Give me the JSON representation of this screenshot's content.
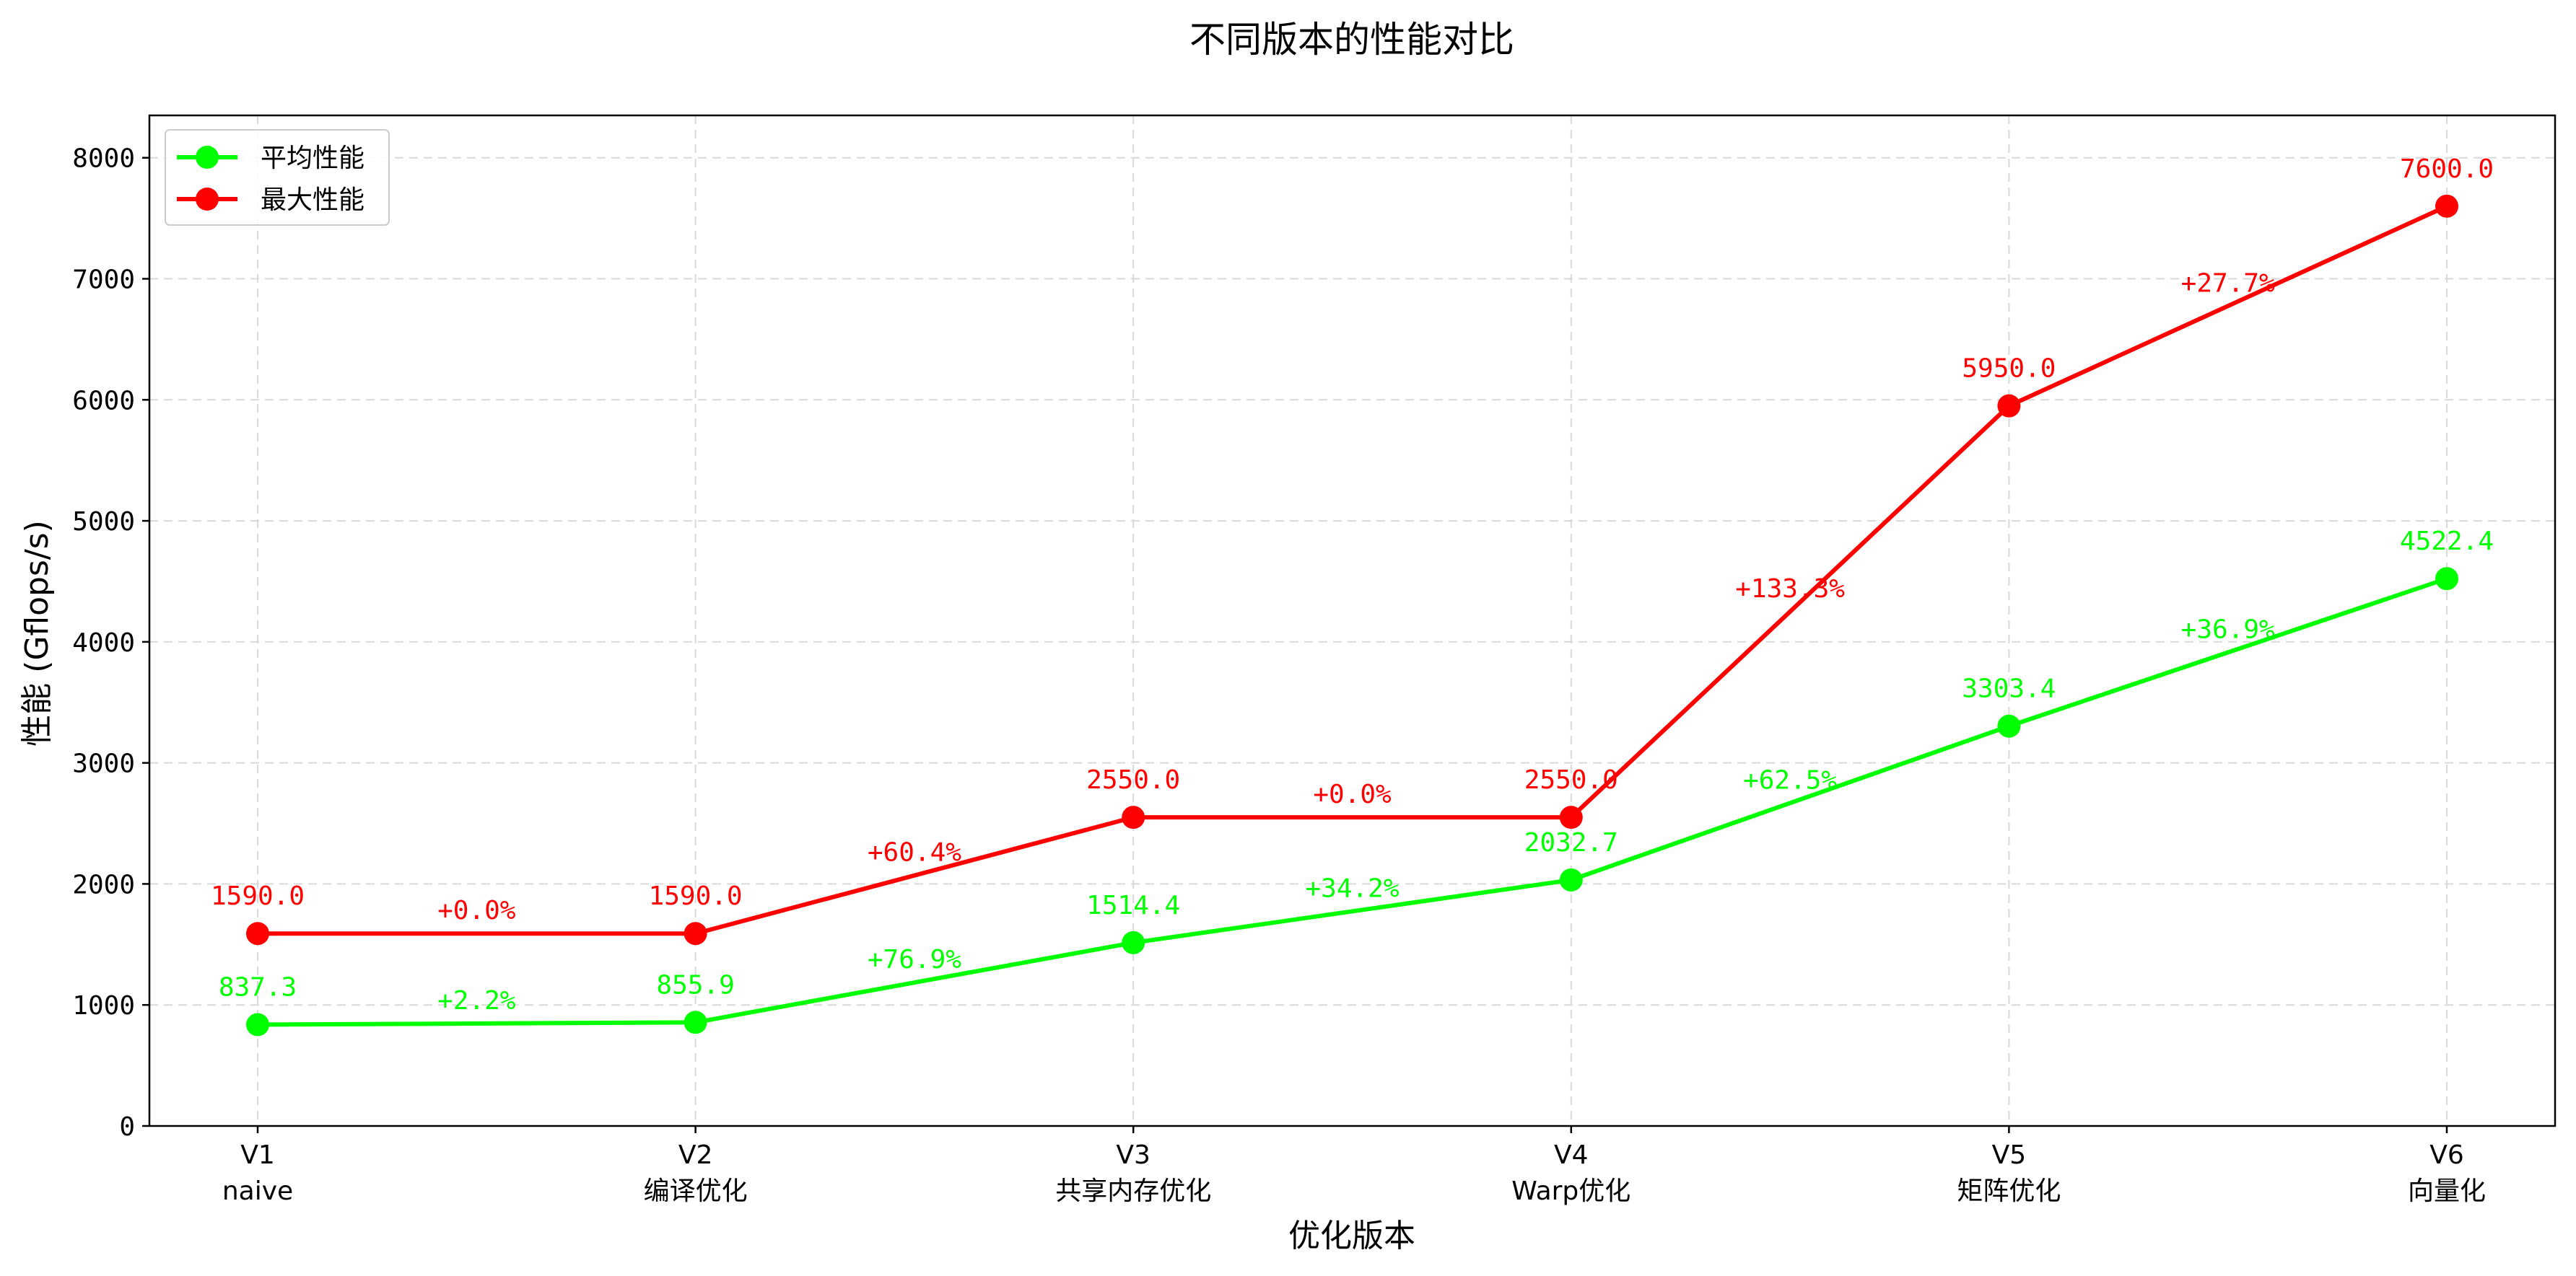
{
  "chart_data": {
    "type": "line",
    "title": "不同版本的性能对比",
    "xlabel": "优化版本",
    "ylabel": "性能 (Gflops/s)",
    "categories": [
      {
        "version": "V1",
        "name": "naive"
      },
      {
        "version": "V2",
        "name": "编译优化"
      },
      {
        "version": "V3",
        "name": "共享内存优化"
      },
      {
        "version": "V4",
        "name": "Warp优化"
      },
      {
        "version": "V5",
        "name": "矩阵优化"
      },
      {
        "version": "V6",
        "name": "向量化"
      }
    ],
    "ylim": [
      0,
      8350
    ],
    "yticks": [
      0,
      1000,
      2000,
      3000,
      4000,
      5000,
      6000,
      7000,
      8000
    ],
    "grid": true,
    "legend_position": "top-left",
    "series": [
      {
        "name": "平均性能",
        "color": "#00ff00",
        "values": [
          837.3,
          855.9,
          1514.4,
          2032.7,
          3303.4,
          4522.4
        ],
        "value_labels": [
          "837.3",
          "855.9",
          "1514.4",
          "2032.7",
          "3303.4",
          "4522.4"
        ],
        "growth_labels": [
          "+2.2%",
          "+76.9%",
          "+34.2%",
          "+62.5%",
          "+36.9%"
        ]
      },
      {
        "name": "最大性能",
        "color": "#ff0000",
        "values": [
          1590.0,
          1590.0,
          2550.0,
          2550.0,
          5950.0,
          7600.0
        ],
        "value_labels": [
          "1590.0",
          "1590.0",
          "2550.0",
          "2550.0",
          "5950.0",
          "7600.0"
        ],
        "growth_labels": [
          "+0.0%",
          "+60.4%",
          "+0.0%",
          "+133.3%",
          "+27.7%"
        ]
      }
    ]
  }
}
